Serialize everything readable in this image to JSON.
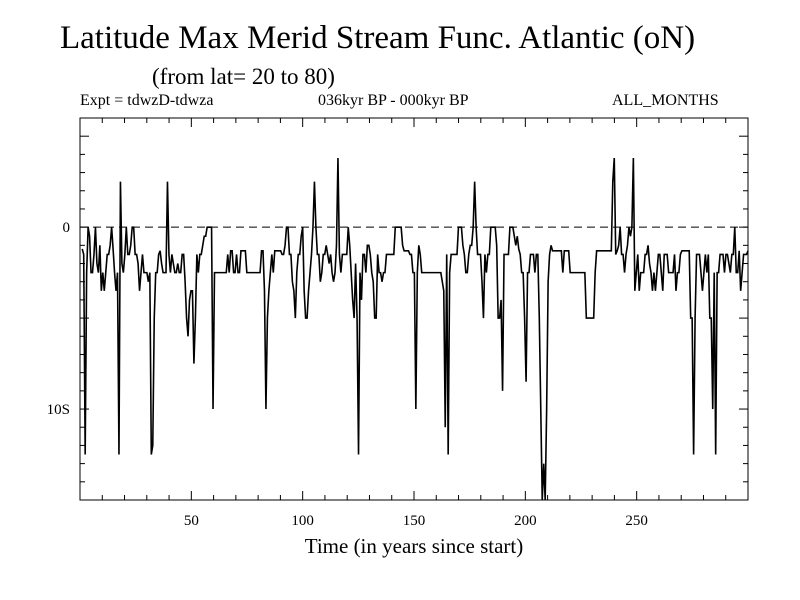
{
  "chart_data": {
    "type": "line",
    "title": "Latitude Max Merid Stream Func. Atlantic (oN)",
    "subtitle": "(from lat= 20 to 80)",
    "experiment": "Expt = tdwzD-tdwza",
    "period": "036kyr BP - 000kyr BP",
    "months": "ALL_MONTHS",
    "xlabel": "Time (in years since start)",
    "ylabel": "",
    "xlim": [
      0,
      300
    ],
    "ylim": [
      -15,
      6
    ],
    "x_tick_labels": [
      "50",
      "100",
      "150",
      "200",
      "250"
    ],
    "y_tick_labels": [
      {
        "value": 0,
        "label": "0"
      },
      {
        "value": -10,
        "label": "10S"
      }
    ],
    "reference_line": {
      "value": 0,
      "style": "dashed"
    },
    "series": [
      {
        "name": "Latitude of max meridional stream function",
        "x_start": 1,
        "values": [
          -1.2,
          -1.5,
          -12.5,
          -2.5,
          0,
          -0.5,
          -2.5,
          -2.5,
          -1.5,
          0,
          -2,
          -2.5,
          -1,
          -3.5,
          -2.5,
          -3.5,
          -2.5,
          -1.5,
          -1.5,
          -1,
          0,
          -1.2,
          -2.5,
          -3.5,
          -2.5,
          -12.5,
          2.5,
          -2,
          -2.5,
          -1.5,
          0,
          -1.5,
          -1.5,
          -1,
          0,
          0,
          -1.5,
          -1.5,
          -2,
          -3.5,
          -2.5,
          -1.5,
          -2.5,
          -2.5,
          -2.5,
          -3,
          -2.5,
          -12.5,
          -12,
          -5,
          -2.5,
          -2.5,
          -1.5,
          -1.3,
          -2,
          -2.5,
          -2.5,
          -2.5,
          2.5,
          -1.5,
          -2.5,
          -1.5,
          -2,
          -2.5,
          -2.5,
          -2,
          -2.5,
          -2.5,
          -1.5,
          -1.5,
          -3,
          -5,
          -6,
          -4,
          -3.5,
          -3.5,
          -7.5,
          -5,
          -1.5,
          -2.5,
          -1.5,
          -1.5,
          -1,
          -0.5,
          -0.5,
          0,
          0,
          0,
          0,
          -10,
          -2.5,
          -2.5,
          -2.5,
          -2.5,
          -2.5,
          -2.5,
          -2.5,
          -2.5,
          -2.5,
          -1.5,
          -2.5,
          -1.3,
          -1.3,
          -2.5,
          -2.5,
          -1.5,
          -2.5,
          -2.5,
          -1.3,
          -1.3,
          -1.3,
          -1.3,
          -2.5,
          -2.5,
          -2.5,
          -2.5,
          -2.5,
          -2.5,
          -2.5,
          -2.5,
          -2.5,
          -2.5,
          -1.3,
          -1.3,
          -3.5,
          -10,
          -5,
          -3.5,
          -2.5,
          -1.5,
          -2.5,
          -1.3,
          -1.3,
          -1.3,
          -1.3,
          -1.3,
          -1.5,
          -1.5,
          -1,
          0,
          0,
          -1.5,
          -1.5,
          -3,
          -3.5,
          -5,
          -2.5,
          -1.5,
          -1.5,
          -0.5,
          0,
          -3.5,
          -5,
          -5,
          -3.5,
          -2.5,
          -1.5,
          0,
          2.5,
          0,
          -1.5,
          -1.5,
          -3,
          -2.5,
          -1.5,
          -1.5,
          -1,
          -1.5,
          -2,
          -1.5,
          -2.5,
          -3,
          -2.5,
          -1,
          3.8,
          -1.5,
          -2.5,
          -1.5,
          -1.5,
          -1.5,
          -1.5,
          0,
          -1,
          -2.5,
          -4,
          -5,
          -2,
          -5,
          -12.5,
          -2.5,
          -4,
          -1.5,
          -1.5,
          -2.5,
          -1,
          -1,
          -1.5,
          -2.5,
          -3,
          -5,
          -5,
          -1.5,
          -2.5,
          -2.5,
          -3,
          -2.5,
          -2.5,
          -1.5,
          -1.5,
          -1.5,
          -1.5,
          -1.5,
          -1.5,
          0,
          0,
          0,
          0,
          0,
          -1,
          -1.3,
          -1.3,
          -1.3,
          -1.3,
          -1.5,
          -1.5,
          -2.5,
          -2.5,
          -10,
          -2.5,
          -1,
          -1.5,
          -2.5,
          -2.5,
          -2.5,
          -2.5,
          -2.5,
          -2.5,
          -2.5,
          -2.5,
          -2.5,
          -2.5,
          -2.5,
          -2.5,
          -2.5,
          -2.5,
          -3,
          -3.5,
          -11,
          -1.5,
          -12.5,
          -2.5,
          -1.5,
          -1.5,
          -1.5,
          -1.5,
          -1.5,
          0,
          0,
          0,
          -1,
          -1.5,
          -2.5,
          -2.5,
          -1.5,
          -1,
          -1,
          0,
          2.5,
          0,
          -1.5,
          -1.5,
          -1.5,
          -3,
          -5,
          -1.5,
          -2.5,
          -1.5,
          -1.5,
          0,
          0,
          0,
          0,
          -1,
          -5,
          -5,
          -4,
          -9,
          -1.5,
          -1.5,
          -1.5,
          -1.5,
          0,
          0,
          0,
          -0.5,
          -1,
          -0.5,
          -1.2,
          -1.5,
          -2.5,
          -2.5,
          -5,
          -8.5,
          -2.5,
          -2.5,
          -1.5,
          -1.5,
          -1.5,
          -2.5,
          -1.5,
          -1.5,
          -5,
          -10,
          -15,
          -13,
          -15,
          -10,
          -3,
          -1.5,
          -1,
          -1.3,
          -1.3,
          -1.3,
          -1.3,
          -1.3,
          -1.3,
          -1.3,
          -2.5,
          -1.3,
          -1.3,
          -1.3,
          -1.3,
          -2.5,
          -2.5,
          -2.5,
          -2.5,
          -2.5,
          -2.5,
          -2.5,
          -2.5,
          -2.5,
          -2.5,
          -2.5,
          -5,
          -5,
          -5,
          -5,
          -5,
          -5,
          -2.5,
          -1.3,
          -1.3,
          -1.3,
          -1.3,
          -1.3,
          -1.3,
          -1.3,
          -1.3,
          -1.3,
          -1.3,
          -1.3,
          2.5,
          3.8,
          -1.5,
          -1.3,
          -1,
          0,
          -1.5,
          -1.5,
          -2.5,
          -1.5,
          -1,
          0,
          -0.5,
          0,
          3.8,
          -3.5,
          -2.5,
          -1.5,
          -3.5,
          -2.5,
          -2.5,
          -2.5,
          -1.5,
          -1.5,
          -1,
          -2,
          -2.5,
          -3.5,
          -2.5,
          -3.5,
          -2.5,
          -1.5,
          -1.5,
          -2.5,
          -3.5,
          -1.5,
          -1.5,
          -1.5,
          -2.5,
          -2.5,
          -2.5,
          -2.5,
          -1.5,
          -3.5,
          -2.5,
          -2.5,
          -1.5,
          -1.3,
          -1.3,
          -1.3,
          -1.3,
          -1.3,
          -1.3,
          -5,
          -5,
          -12.5,
          -5,
          -1.5,
          -1.5,
          -1.5,
          -2.5,
          -3.5,
          -2.5,
          -1.5,
          -2.5,
          -1.5,
          -5,
          -5,
          -10,
          -2.5,
          -12.5,
          -2.5,
          -2.5,
          -1.5,
          -1.5,
          -1.5,
          -2.5,
          -1.5,
          -1.5,
          -2,
          -2.5,
          -1.5,
          -1.5,
          0,
          -2.5,
          -2.5,
          -1.3,
          -3.5,
          -2.5,
          -1.5,
          -1.5,
          -1.5,
          -1.3
        ]
      }
    ]
  }
}
